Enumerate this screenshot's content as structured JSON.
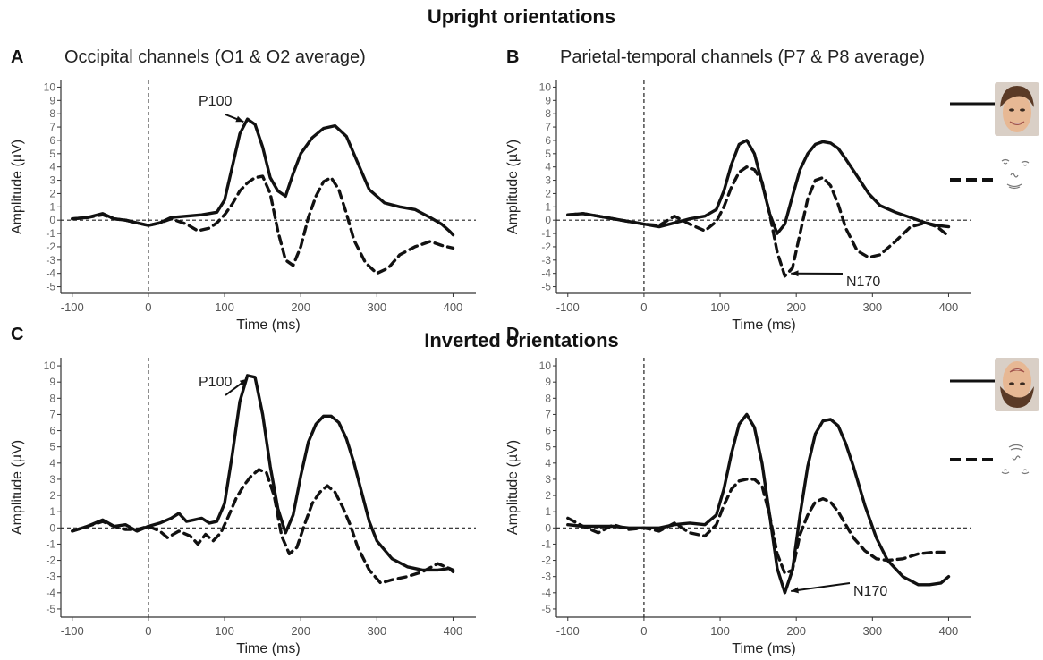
{
  "headers": {
    "upright": "Upright orientations",
    "inverted": "Inverted orientations"
  },
  "colors": {
    "line": "#111111",
    "face_skin": "#e7b894",
    "face_hair": "#5a3a26"
  },
  "icons": {
    "upright_face": "upright-face-photo-icon",
    "upright_scrambled": "scrambled-face-features-icon",
    "inverted_face": "inverted-face-photo-icon",
    "inverted_scrambled": "inverted-scrambled-features-icon"
  },
  "chart_data": [
    {
      "type": "line",
      "panel_letter": "A",
      "title": "Occipital channels (O1 & O2 average)",
      "xlabel": "Time (ms)",
      "ylabel": "Amplitude (µV)",
      "xlim": [
        -115,
        430
      ],
      "ylim": [
        -5.5,
        10.5
      ],
      "xticks": [
        -100,
        0,
        100,
        200,
        300,
        400
      ],
      "yticks": [
        -5,
        -4,
        -3,
        -2,
        -1,
        0,
        1,
        2,
        3,
        4,
        5,
        6,
        7,
        8,
        9,
        10
      ],
      "grid": false,
      "reference_lines": {
        "x": 0,
        "y": 0
      },
      "series": [
        {
          "style": "solid",
          "x": [
            -100,
            -80,
            -60,
            -45,
            -30,
            -15,
            0,
            15,
            30,
            50,
            70,
            90,
            100,
            110,
            120,
            130,
            140,
            150,
            160,
            170,
            180,
            190,
            200,
            215,
            230,
            245,
            260,
            275,
            290,
            310,
            330,
            350,
            370,
            385,
            395,
            400
          ],
          "y": [
            0.1,
            0.2,
            0.5,
            0.1,
            0,
            -0.2,
            -0.4,
            -0.2,
            0.2,
            0.3,
            0.4,
            0.6,
            1.5,
            4.0,
            6.5,
            7.6,
            7.2,
            5.5,
            3.2,
            2.2,
            1.8,
            3.5,
            5.0,
            6.2,
            6.9,
            7.1,
            6.3,
            4.3,
            2.3,
            1.3,
            1.0,
            0.8,
            0.2,
            -0.3,
            -0.8,
            -1.1
          ]
        },
        {
          "style": "dashed",
          "x": [
            -100,
            -80,
            -60,
            -45,
            -30,
            -15,
            0,
            15,
            30,
            50,
            65,
            80,
            90,
            100,
            110,
            120,
            130,
            140,
            150,
            160,
            170,
            180,
            190,
            200,
            210,
            220,
            230,
            240,
            250,
            260,
            270,
            285,
            300,
            315,
            330,
            350,
            370,
            385,
            400
          ],
          "y": [
            0.1,
            0.2,
            0.4,
            0.1,
            0,
            -0.2,
            -0.4,
            -0.2,
            0.1,
            -0.3,
            -0.8,
            -0.6,
            -0.2,
            0.4,
            1.2,
            2.2,
            2.8,
            3.2,
            3.3,
            2.0,
            -0.8,
            -3.0,
            -3.4,
            -2.0,
            0.2,
            1.8,
            2.9,
            3.2,
            2.3,
            0.5,
            -1.5,
            -3.2,
            -4.0,
            -3.6,
            -2.6,
            -2.0,
            -1.6,
            -1.9,
            -2.1
          ]
        }
      ],
      "annotations": [
        {
          "text": "P100"
        }
      ]
    },
    {
      "type": "line",
      "panel_letter": "B",
      "title": "Parietal-temporal channels (P7 & P8 average)",
      "xlabel": "Time (ms)",
      "ylabel": "Amplitude (µV)",
      "xlim": [
        -115,
        430
      ],
      "ylim": [
        -5.5,
        10.5
      ],
      "xticks": [
        -100,
        0,
        100,
        200,
        300,
        400
      ],
      "yticks": [
        -5,
        -4,
        -3,
        -2,
        -1,
        0,
        1,
        2,
        3,
        4,
        5,
        6,
        7,
        8,
        9,
        10
      ],
      "grid": false,
      "reference_lines": {
        "x": 0,
        "y": 0
      },
      "series": [
        {
          "style": "solid",
          "x": [
            -100,
            -80,
            -60,
            -40,
            -20,
            0,
            20,
            40,
            60,
            80,
            95,
            105,
            115,
            125,
            135,
            145,
            155,
            165,
            175,
            185,
            195,
            205,
            215,
            225,
            235,
            245,
            255,
            265,
            280,
            295,
            310,
            330,
            350,
            370,
            385,
            400
          ],
          "y": [
            0.4,
            0.5,
            0.3,
            0.1,
            -0.1,
            -0.3,
            -0.5,
            -0.2,
            0.1,
            0.3,
            0.8,
            2.2,
            4.2,
            5.7,
            6.0,
            5.0,
            2.8,
            0.5,
            -1.0,
            -0.3,
            1.8,
            3.8,
            5.0,
            5.7,
            5.9,
            5.8,
            5.4,
            4.6,
            3.3,
            2.0,
            1.1,
            0.6,
            0.2,
            -0.2,
            -0.4,
            -0.5
          ]
        },
        {
          "style": "dashed",
          "x": [
            -100,
            -80,
            -60,
            -40,
            -20,
            0,
            20,
            40,
            60,
            80,
            95,
            105,
            115,
            125,
            135,
            145,
            155,
            165,
            175,
            185,
            195,
            205,
            215,
            225,
            235,
            245,
            255,
            265,
            280,
            295,
            310,
            330,
            350,
            370,
            385,
            400
          ],
          "y": [
            0.4,
            0.5,
            0.3,
            0.1,
            -0.1,
            -0.3,
            -0.4,
            0.3,
            -0.3,
            -0.8,
            -0.1,
            1.0,
            2.5,
            3.6,
            4.0,
            3.8,
            2.9,
            0.5,
            -2.4,
            -4.2,
            -3.6,
            -1.0,
            1.6,
            3.0,
            3.2,
            2.6,
            1.2,
            -0.6,
            -2.3,
            -2.8,
            -2.6,
            -1.6,
            -0.5,
            -0.2,
            -0.5,
            -1.2
          ]
        }
      ],
      "annotations": [
        {
          "text": "N170"
        }
      ]
    },
    {
      "type": "line",
      "panel_letter": "C",
      "xlabel": "Time (ms)",
      "ylabel": "Amplitude (µV)",
      "xlim": [
        -115,
        430
      ],
      "ylim": [
        -5.5,
        10.5
      ],
      "xticks": [
        -100,
        0,
        100,
        200,
        300,
        400
      ],
      "yticks": [
        -5,
        -4,
        -3,
        -2,
        -1,
        0,
        1,
        2,
        3,
        4,
        5,
        6,
        7,
        8,
        9,
        10
      ],
      "grid": false,
      "reference_lines": {
        "x": 0,
        "y": 0
      },
      "series": [
        {
          "style": "solid",
          "x": [
            -100,
            -80,
            -60,
            -45,
            -30,
            -15,
            0,
            15,
            30,
            40,
            50,
            60,
            70,
            80,
            90,
            100,
            110,
            120,
            130,
            140,
            150,
            160,
            170,
            180,
            190,
            200,
            210,
            220,
            230,
            240,
            250,
            260,
            270,
            280,
            290,
            300,
            320,
            340,
            360,
            380,
            395,
            400
          ],
          "y": [
            -0.2,
            0.1,
            0.5,
            0.1,
            0.2,
            -0.2,
            0.1,
            0.3,
            0.6,
            0.9,
            0.4,
            0.5,
            0.6,
            0.3,
            0.4,
            1.5,
            4.5,
            7.8,
            9.4,
            9.3,
            7.0,
            3.8,
            1.2,
            -0.3,
            0.8,
            3.2,
            5.3,
            6.4,
            6.9,
            6.9,
            6.5,
            5.5,
            4.0,
            2.2,
            0.4,
            -0.8,
            -1.9,
            -2.4,
            -2.6,
            -2.6,
            -2.5,
            -2.6
          ]
        },
        {
          "style": "dashed",
          "x": [
            -100,
            -80,
            -60,
            -45,
            -30,
            -15,
            0,
            15,
            25,
            40,
            55,
            65,
            75,
            85,
            95,
            105,
            115,
            125,
            135,
            145,
            155,
            165,
            175,
            185,
            195,
            205,
            215,
            225,
            235,
            245,
            255,
            265,
            275,
            290,
            305,
            320,
            340,
            360,
            380,
            395,
            400
          ],
          "y": [
            -0.2,
            0.1,
            0.4,
            0.1,
            -0.1,
            -0.1,
            0.1,
            -0.2,
            -0.6,
            -0.2,
            -0.5,
            -1.0,
            -0.4,
            -0.8,
            -0.3,
            0.7,
            1.8,
            2.6,
            3.2,
            3.6,
            3.4,
            2.0,
            -0.5,
            -1.6,
            -1.2,
            0.2,
            1.5,
            2.2,
            2.6,
            2.2,
            1.3,
            0.2,
            -1.2,
            -2.6,
            -3.4,
            -3.2,
            -3.0,
            -2.7,
            -2.2,
            -2.5,
            -2.7
          ]
        }
      ],
      "annotations": [
        {
          "text": "P100"
        }
      ]
    },
    {
      "type": "line",
      "panel_letter": "D",
      "xlabel": "Time (ms)",
      "ylabel": "Amplitude (µV)",
      "xlim": [
        -115,
        430
      ],
      "ylim": [
        -5.5,
        10.5
      ],
      "xticks": [
        -100,
        0,
        100,
        200,
        300,
        400
      ],
      "yticks": [
        -5,
        -4,
        -3,
        -2,
        -1,
        0,
        1,
        2,
        3,
        4,
        5,
        6,
        7,
        8,
        9,
        10
      ],
      "grid": false,
      "reference_lines": {
        "x": 0,
        "y": 0
      },
      "series": [
        {
          "style": "solid",
          "x": [
            -100,
            -80,
            -60,
            -40,
            -20,
            0,
            20,
            40,
            60,
            80,
            95,
            105,
            115,
            125,
            135,
            145,
            155,
            165,
            175,
            185,
            195,
            205,
            215,
            225,
            235,
            245,
            255,
            265,
            275,
            290,
            305,
            320,
            340,
            360,
            375,
            390,
            400
          ],
          "y": [
            0.2,
            0.1,
            0.1,
            0.1,
            0,
            0,
            0,
            0.2,
            0.3,
            0.2,
            0.8,
            2.4,
            4.6,
            6.4,
            7.0,
            6.2,
            4.0,
            0.8,
            -2.5,
            -4.0,
            -2.6,
            0.8,
            3.8,
            5.8,
            6.6,
            6.7,
            6.3,
            5.2,
            3.8,
            1.4,
            -0.6,
            -2.0,
            -3.0,
            -3.5,
            -3.5,
            -3.4,
            -3.0
          ]
        },
        {
          "style": "dashed",
          "x": [
            -100,
            -80,
            -60,
            -40,
            -20,
            0,
            20,
            40,
            60,
            80,
            95,
            105,
            115,
            125,
            135,
            145,
            155,
            165,
            175,
            185,
            195,
            205,
            215,
            225,
            235,
            245,
            255,
            265,
            275,
            290,
            305,
            320,
            340,
            360,
            380,
            400
          ],
          "y": [
            0.6,
            0.1,
            -0.3,
            0.2,
            -0.1,
            0,
            -0.2,
            0.3,
            -0.3,
            -0.5,
            0.2,
            1.4,
            2.4,
            2.9,
            3.0,
            3.0,
            2.6,
            0.8,
            -1.6,
            -2.8,
            -2.6,
            -0.4,
            0.8,
            1.6,
            1.8,
            1.6,
            1.0,
            0.2,
            -0.6,
            -1.4,
            -1.9,
            -2.0,
            -1.9,
            -1.6,
            -1.5,
            -1.5
          ]
        }
      ],
      "annotations": [
        {
          "text": "N170"
        }
      ]
    }
  ]
}
